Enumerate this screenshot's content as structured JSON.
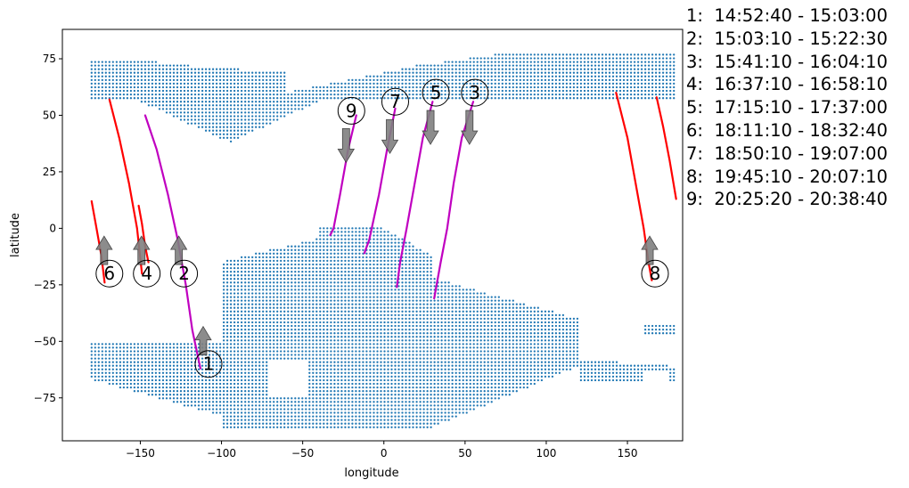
{
  "chart_data": {
    "type": "scatter",
    "xlabel": "longitude",
    "ylabel": "latitude",
    "xlim": [
      -198,
      184
    ],
    "ylim": [
      -94,
      88
    ],
    "xticks": [
      -150,
      -100,
      -50,
      0,
      50,
      100,
      150
    ],
    "yticks": [
      -75,
      -50,
      -25,
      0,
      25,
      50,
      75
    ],
    "grid": false,
    "colors": {
      "land_dots": "#1f77b4",
      "track_red": "#ff0000",
      "track_magenta": "#c000c0",
      "arrow_fill": "#808080"
    },
    "coverage_points": {
      "description_of_extent": "dense gridded points on two latitude bands",
      "north_band": {
        "lon": [
          -180,
          180
        ],
        "lat": [
          38,
          77
        ]
      },
      "south_band": {
        "lon": [
          -180,
          180
        ],
        "lat": [
          -88,
          -42
        ]
      },
      "central_lobe": {
        "lon": [
          -100,
          120
        ],
        "lat": [
          -88,
          0
        ]
      }
    },
    "tracks": [
      {
        "id": "1",
        "color": "magenta",
        "points": [
          [
            -147,
            50
          ],
          [
            -140,
            35
          ],
          [
            -133,
            15
          ],
          [
            -127,
            -5
          ],
          [
            -122,
            -25
          ],
          [
            -118,
            -45
          ],
          [
            -113,
            -62
          ]
        ]
      },
      {
        "id": "2",
        "color": "red",
        "points": [
          [
            -151,
            10
          ],
          [
            -149,
            2
          ],
          [
            -147,
            -8
          ],
          [
            -145,
            -15
          ]
        ]
      },
      {
        "id": "3",
        "color": "magenta",
        "points": [
          [
            55,
            56
          ],
          [
            48,
            40
          ],
          [
            43,
            20
          ],
          [
            39,
            0
          ],
          [
            35,
            -15
          ],
          [
            31,
            -31
          ]
        ]
      },
      {
        "id": "4",
        "color": "red",
        "points": [
          [
            -169,
            57
          ],
          [
            -163,
            40
          ],
          [
            -157,
            20
          ],
          [
            -152,
            0
          ],
          [
            -149,
            -20
          ]
        ]
      },
      {
        "id": "5",
        "color": "magenta",
        "points": [
          [
            30,
            56
          ],
          [
            24,
            40
          ],
          [
            19,
            20
          ],
          [
            14,
            0
          ],
          [
            10,
            -15
          ],
          [
            8,
            -26
          ]
        ]
      },
      {
        "id": "6",
        "color": "red",
        "points": [
          [
            -180,
            12
          ],
          [
            -177,
            0
          ],
          [
            -174,
            -12
          ],
          [
            -172,
            -24
          ]
        ]
      },
      {
        "id": "7",
        "color": "magenta",
        "points": [
          [
            7,
            53
          ],
          [
            2,
            35
          ],
          [
            -3,
            15
          ],
          [
            -9,
            -5
          ],
          [
            -12,
            -11
          ]
        ]
      },
      {
        "id": "8",
        "color": "red",
        "points": [
          [
            143,
            60
          ],
          [
            150,
            40
          ],
          [
            155,
            20
          ],
          [
            160,
            0
          ],
          [
            163,
            -15
          ],
          [
            165,
            -23
          ]
        ]
      },
      {
        "id": "8b",
        "color": "red",
        "points": [
          [
            168,
            58
          ],
          [
            172,
            45
          ],
          [
            176,
            30
          ],
          [
            180,
            13
          ]
        ]
      },
      {
        "id": "9",
        "color": "magenta",
        "points": [
          [
            -17,
            50
          ],
          [
            -22,
            35
          ],
          [
            -27,
            15
          ],
          [
            -31,
            0
          ],
          [
            -33,
            -3
          ]
        ]
      }
    ],
    "markers": [
      {
        "label": "1",
        "x": -108,
        "y": -60,
        "arrow": "up"
      },
      {
        "label": "2",
        "x": -123,
        "y": -20,
        "arrow": "up"
      },
      {
        "label": "3",
        "x": 56,
        "y": 60,
        "arrow": "down"
      },
      {
        "label": "4",
        "x": -146,
        "y": -20,
        "arrow": "up"
      },
      {
        "label": "5",
        "x": 32,
        "y": 60,
        "arrow": "down"
      },
      {
        "label": "6",
        "x": -169,
        "y": -20,
        "arrow": "up"
      },
      {
        "label": "7",
        "x": 7,
        "y": 56,
        "arrow": "down"
      },
      {
        "label": "8",
        "x": 167,
        "y": -20,
        "arrow": "up"
      },
      {
        "label": "9",
        "x": -20,
        "y": 52,
        "arrow": "down"
      }
    ]
  },
  "legend": [
    {
      "num": "1:",
      "range": "14:52:40 - 15:03:00"
    },
    {
      "num": "2:",
      "range": "15:03:10 - 15:22:30"
    },
    {
      "num": "3:",
      "range": "15:41:10 - 16:04:10"
    },
    {
      "num": "4:",
      "range": "16:37:10 - 16:58:10"
    },
    {
      "num": "5:",
      "range": "17:15:10 - 17:37:00"
    },
    {
      "num": "6:",
      "range": "18:11:10 - 18:32:40"
    },
    {
      "num": "7:",
      "range": "18:50:10 - 19:07:00"
    },
    {
      "num": "8:",
      "range": "19:45:10 - 20:07:10"
    },
    {
      "num": "9:",
      "range": "20:25:20 - 20:38:40"
    }
  ]
}
